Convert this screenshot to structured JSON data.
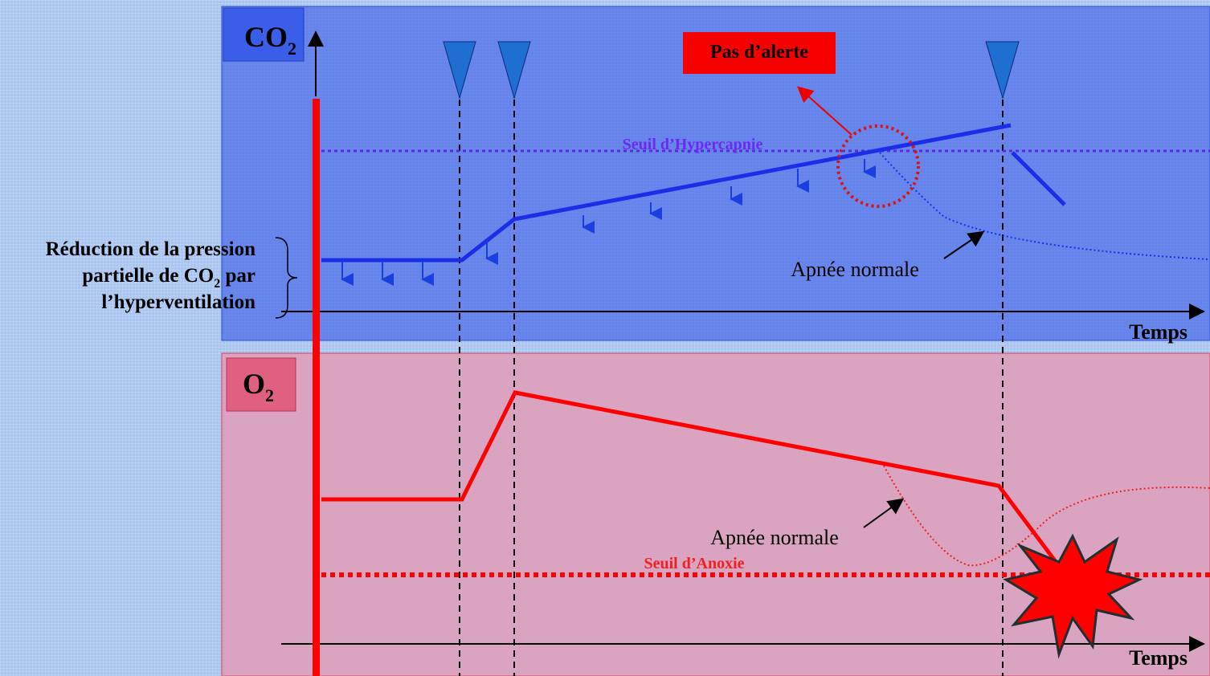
{
  "co2_panel": {
    "title": {
      "main": "CO",
      "sub": "2"
    },
    "alert": "Pas d’alerte",
    "threshold": "Seuil d’Hypercapnie",
    "apnea_label": "Apnée normale",
    "x_axis": "Temps"
  },
  "annotation": {
    "line1": "Réduction de la pression",
    "line2_main": "partielle de CO",
    "line2_sub": "2",
    "line2_end": " par",
    "line3": "l’hyperventilation"
  },
  "o2_panel": {
    "title": {
      "main": "O",
      "sub": "2"
    },
    "threshold": "Seuil d’Anoxie",
    "apnea_label": "Apnée normale",
    "x_axis": "Temps"
  }
}
